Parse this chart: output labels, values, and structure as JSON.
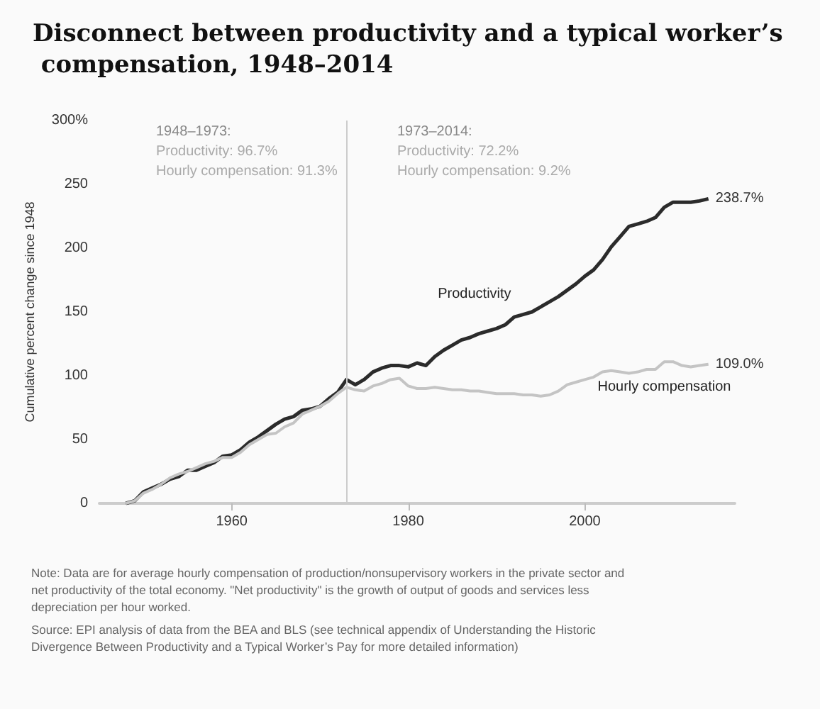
{
  "chart_data": {
    "type": "line",
    "title": "Disconnect between productivity and a typical worker’s compensation, 1948–2014",
    "ylabel": "Cumulative percent change since 1948",
    "x": [
      1948,
      1949,
      1950,
      1951,
      1952,
      1953,
      1954,
      1955,
      1956,
      1957,
      1958,
      1959,
      1960,
      1961,
      1962,
      1963,
      1964,
      1965,
      1966,
      1967,
      1968,
      1969,
      1970,
      1971,
      1972,
      1973,
      1974,
      1975,
      1976,
      1977,
      1978,
      1979,
      1980,
      1981,
      1982,
      1983,
      1984,
      1985,
      1986,
      1987,
      1988,
      1989,
      1990,
      1991,
      1992,
      1993,
      1994,
      1995,
      1996,
      1997,
      1998,
      1999,
      2000,
      2001,
      2002,
      2003,
      2004,
      2005,
      2006,
      2007,
      2008,
      2009,
      2010,
      2011,
      2012,
      2013,
      2014
    ],
    "series": [
      {
        "name": "Productivity",
        "color": "#2b2b2b",
        "values": [
          0,
          2,
          9,
          12,
          15,
          19,
          21,
          26,
          26,
          29,
          32,
          37,
          38,
          42,
          48,
          52,
          57,
          62,
          66,
          68,
          73,
          74,
          76,
          82,
          87,
          97,
          93,
          97,
          103,
          106,
          108,
          108,
          107,
          110,
          108,
          115,
          120,
          124,
          128,
          130,
          133,
          135,
          137,
          140,
          146,
          148,
          150,
          154,
          158,
          162,
          167,
          172,
          178,
          183,
          191,
          201,
          209,
          217,
          219,
          221,
          224,
          232,
          236,
          236,
          236,
          237,
          238.7
        ],
        "value_labels": [
          null,
          null,
          null,
          null,
          null,
          null,
          null,
          null,
          null,
          null,
          null,
          null,
          null,
          null,
          null,
          null,
          null,
          null,
          null,
          null,
          null,
          null,
          null,
          null,
          null,
          null,
          null,
          null,
          null,
          null,
          null,
          null,
          null,
          null,
          null,
          null,
          null,
          null,
          null,
          null,
          null,
          null,
          null,
          null,
          null,
          null,
          null,
          null,
          null,
          null,
          null,
          null,
          null,
          null,
          null,
          null,
          null,
          null,
          null,
          null,
          null,
          null,
          null,
          null,
          null,
          null,
          "238.7%"
        ]
      },
      {
        "name": "Hourly compensation",
        "color": "#c4c4c4",
        "values": [
          0,
          2,
          8,
          11,
          15,
          20,
          23,
          25,
          28,
          31,
          33,
          36,
          36,
          40,
          46,
          50,
          54,
          55,
          60,
          63,
          70,
          73,
          76,
          80,
          86,
          91,
          89,
          88,
          92,
          94,
          97,
          98,
          92,
          90,
          90,
          91,
          90,
          89,
          89,
          88,
          88,
          87,
          86,
          86,
          86,
          85,
          85,
          84,
          85,
          88,
          93,
          95,
          97,
          99,
          103,
          104,
          103,
          102,
          103,
          105,
          105,
          111,
          111,
          108,
          107,
          108,
          109.0
        ],
        "value_labels": [
          null,
          null,
          null,
          null,
          null,
          null,
          null,
          null,
          null,
          null,
          null,
          null,
          null,
          null,
          null,
          null,
          null,
          null,
          null,
          null,
          null,
          null,
          null,
          null,
          null,
          null,
          null,
          null,
          null,
          null,
          null,
          null,
          null,
          null,
          null,
          null,
          null,
          null,
          null,
          null,
          null,
          null,
          null,
          null,
          null,
          null,
          null,
          null,
          null,
          null,
          null,
          null,
          null,
          null,
          null,
          null,
          null,
          null,
          null,
          null,
          null,
          null,
          null,
          null,
          null,
          null,
          "109.0%"
        ]
      }
    ],
    "xlim": [
      1945,
      2017
    ],
    "xticks": [
      1960,
      1980,
      2000
    ],
    "ylim": [
      0,
      300
    ],
    "yticks": [
      0,
      50,
      100,
      150,
      200,
      250,
      {
        "value": 300,
        "label": "300%"
      }
    ],
    "ref_lines": [
      {
        "axis": "x",
        "value": 1973,
        "color": "#cccccc"
      }
    ],
    "annotations": [
      "1948–1973:",
      "Productivity: 96.7%",
      "Hourly compensation: 91.3%",
      "1973–2014:",
      "Productivity: 72.2%",
      "Hourly compensation: 9.2%",
      "Note: Data are for average hourly compensation of production/nonsupervisory workers in the private sector and net productivity of the total economy. \"Net productivity\" is the growth of output of goods and services less depreciation per hour worked.",
      "Source: EPI analysis of data from the BEA and BLS (see technical appendix of Understanding the Historic Divergence Between Productivity and a Typical Worker’s Pay for more detailed information)"
    ],
    "grid": false,
    "legend": false,
    "marker": "none",
    "line_style": "solid"
  }
}
